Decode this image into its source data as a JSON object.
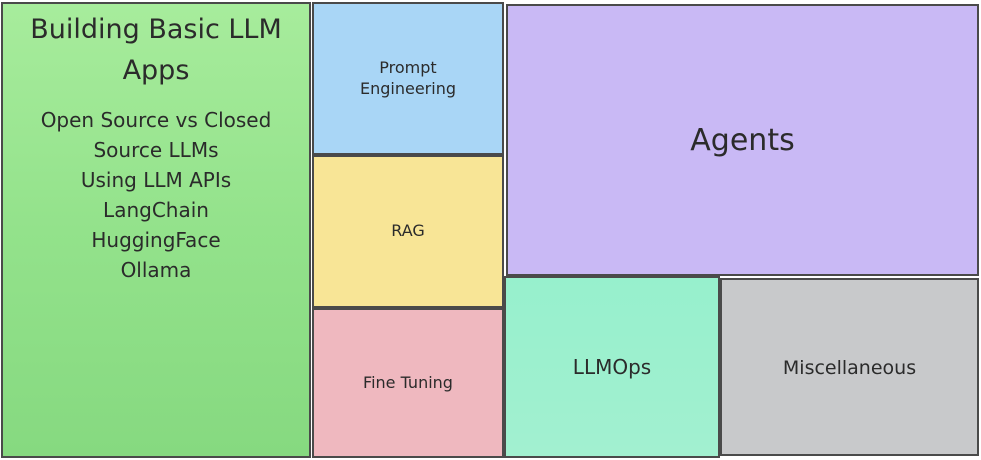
{
  "tiles": {
    "basic": {
      "title": "Building Basic LLM Apps",
      "items": [
        "Open Source vs Closed Source LLMs",
        "Using LLM APIs",
        "LangChain",
        "HuggingFace",
        "Ollama"
      ],
      "color": "#93e28b"
    },
    "prompt": {
      "label": "Prompt Engineering",
      "color": "#a9d6f6"
    },
    "rag": {
      "label": "RAG",
      "color": "#f8e596"
    },
    "finetune": {
      "label": "Fine Tuning",
      "color": "#efb8bf"
    },
    "agents": {
      "label": "Agents",
      "color": "#c9b9f5"
    },
    "llmops": {
      "label": "LLMOps",
      "color": "#97f0cd"
    },
    "misc": {
      "label": "Miscellaneous",
      "color": "#c8c9cb"
    }
  }
}
